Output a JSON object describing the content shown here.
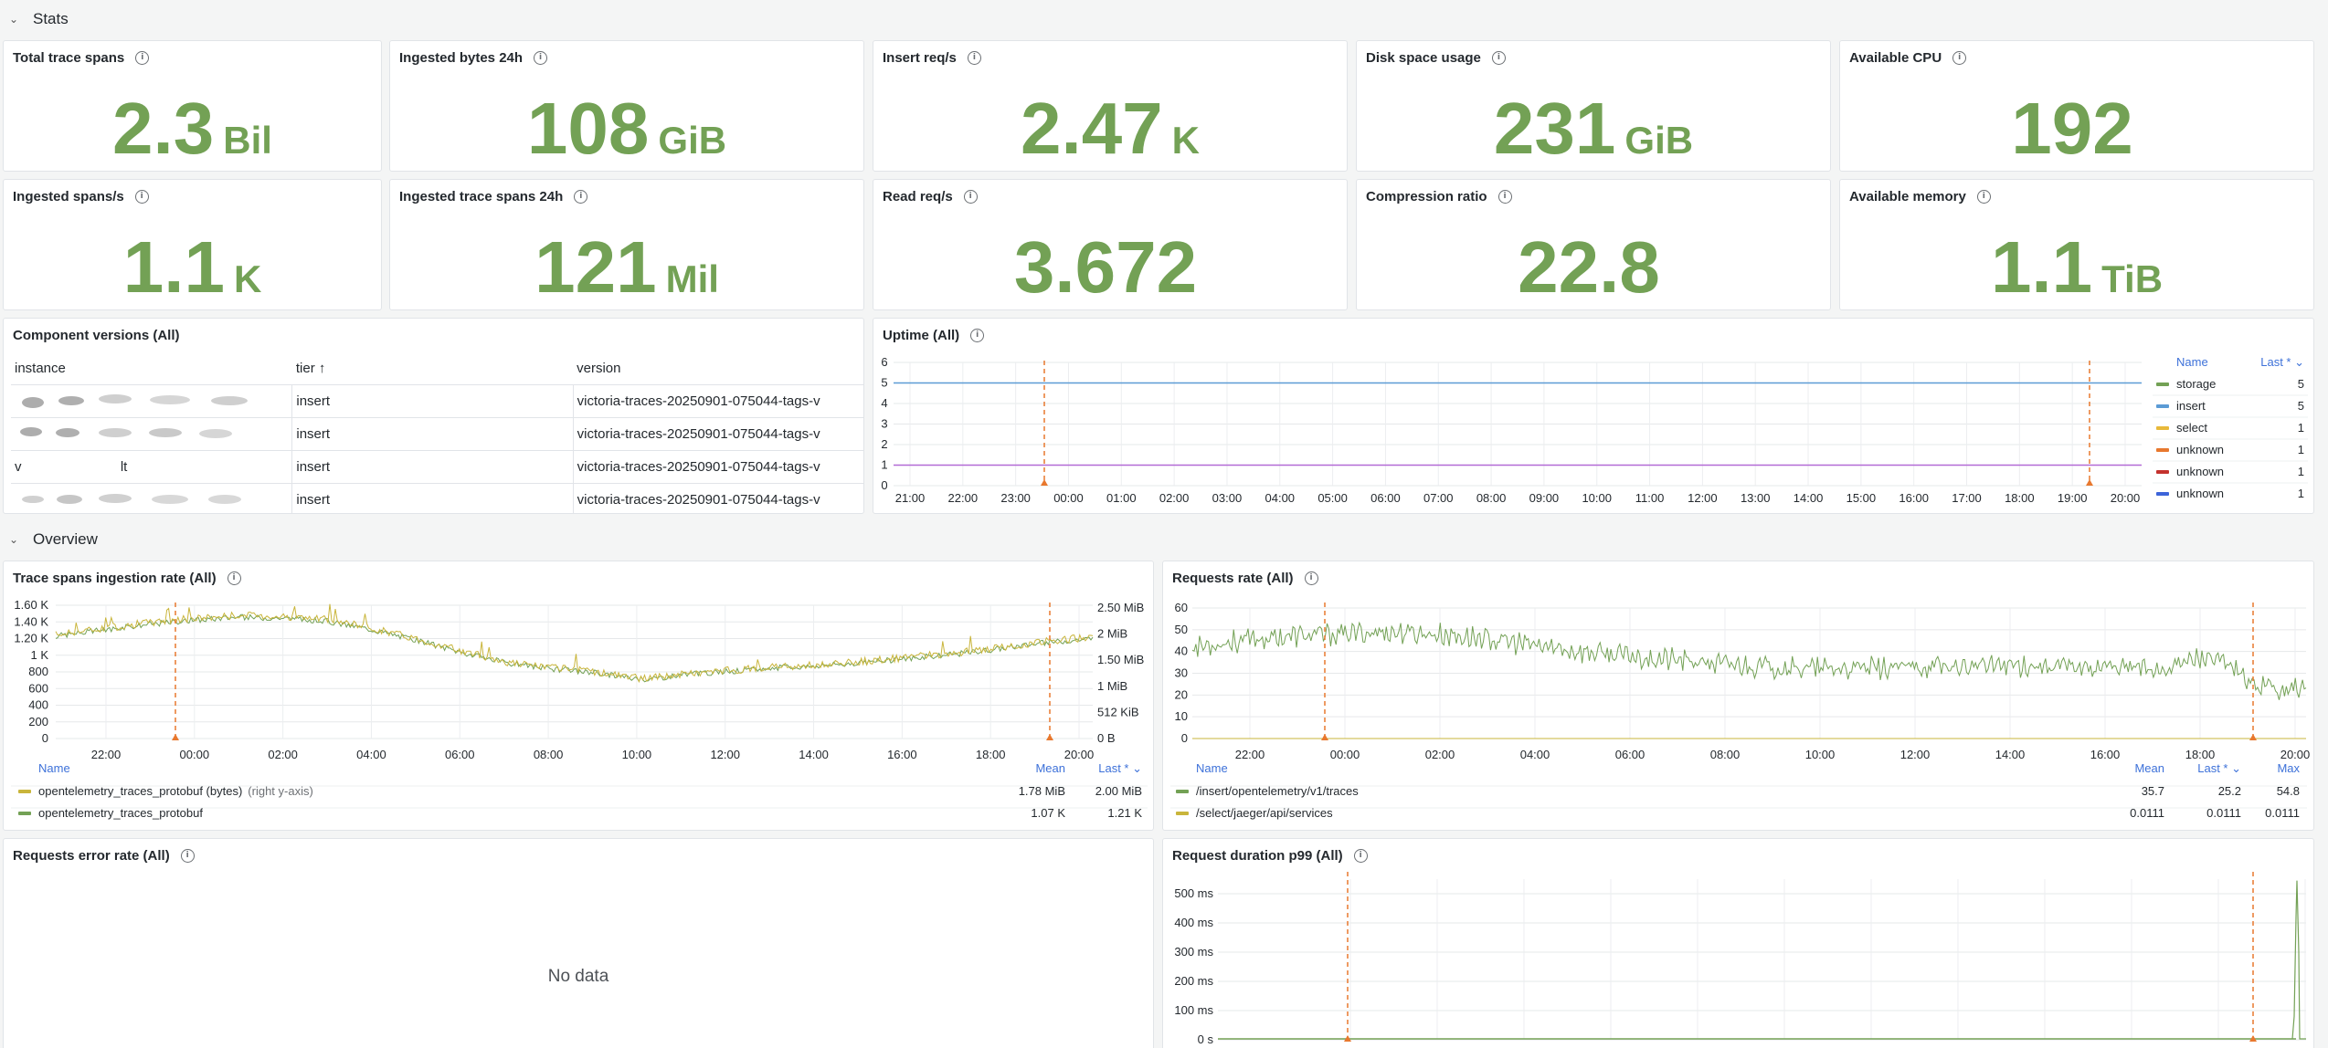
{
  "rows": {
    "stats": "Stats",
    "overview": "Overview"
  },
  "stats": [
    {
      "title": "Total trace spans",
      "value": "2.3",
      "unit": "Bil"
    },
    {
      "title": "Ingested bytes 24h",
      "value": "108",
      "unit": "GiB"
    },
    {
      "title": "Insert req/s",
      "value": "2.47",
      "unit": "K"
    },
    {
      "title": "Disk space usage",
      "value": "231",
      "unit": "GiB"
    },
    {
      "title": "Available CPU",
      "value": "192",
      "unit": ""
    },
    {
      "title": "Ingested spans/s",
      "value": "1.1",
      "unit": "K"
    },
    {
      "title": "Ingested trace spans 24h",
      "value": "121",
      "unit": "Mil"
    },
    {
      "title": "Read req/s",
      "value": "3.672",
      "unit": ""
    },
    {
      "title": "Compression ratio",
      "value": "22.8",
      "unit": ""
    },
    {
      "title": "Available memory",
      "value": "1.1",
      "unit": "TiB"
    }
  ],
  "versions": {
    "title": "Component versions (All)",
    "headers": {
      "instance": "instance",
      "tier": "tier ↑",
      "version": "version"
    },
    "rows": [
      {
        "instance": "",
        "tier": "insert",
        "version": "victoria-traces-20250901-075044-tags-v"
      },
      {
        "instance": "",
        "tier": "insert",
        "version": "victoria-traces-20250901-075044-tags-v"
      },
      {
        "instance": "v                          lt",
        "tier": "insert",
        "version": "victoria-traces-20250901-075044-tags-v"
      },
      {
        "instance": "",
        "tier": "insert",
        "version": "victoria-traces-20250901-075044-tags-v"
      }
    ]
  },
  "uptime": {
    "title": "Uptime (All)",
    "legend_name": "Name",
    "legend_last": "Last * ⌄",
    "colors": {
      "storage": "#73a155",
      "insert": "#5b9bd5",
      "select": "#e8b93a",
      "unknown1": "#e8782e",
      "unknown2": "#c4322e",
      "unknown3": "#3d64d9",
      "purple": "#b36bd6"
    },
    "chart_data": {
      "type": "line",
      "y_ticks": [
        "6",
        "5",
        "4",
        "3",
        "2",
        "1",
        "0"
      ],
      "ylim": [
        0,
        6
      ],
      "x_ticks": [
        "21:00",
        "22:00",
        "23:00",
        "00:00",
        "01:00",
        "02:00",
        "03:00",
        "04:00",
        "05:00",
        "06:00",
        "07:00",
        "08:00",
        "09:00",
        "10:00",
        "11:00",
        "12:00",
        "13:00",
        "14:00",
        "15:00",
        "16:00",
        "17:00",
        "18:00",
        "19:00",
        "20:00"
      ],
      "series": [
        {
          "name": "storage",
          "last": "5"
        },
        {
          "name": "insert",
          "last": "5"
        },
        {
          "name": "select",
          "last": "1"
        },
        {
          "name": "unknown",
          "last": "1"
        },
        {
          "name": "unknown",
          "last": "1"
        },
        {
          "name": "unknown",
          "last": "1"
        }
      ],
      "lines": [
        5,
        1
      ]
    }
  },
  "ingestion": {
    "title": "Trace spans ingestion rate (All)",
    "legend_name": "Name",
    "legend_mean": "Mean",
    "legend_last": "Last * ⌄",
    "chart_data": {
      "type": "line",
      "y_left_ticks": [
        "1.60 K",
        "1.40 K",
        "1.20 K",
        "1 K",
        "800",
        "600",
        "400",
        "200",
        "0"
      ],
      "y_right_ticks": [
        "2.50 MiB",
        "2 MiB",
        "1.50 MiB",
        "1 MiB",
        "512 KiB",
        "0 B"
      ],
      "ylim": [
        0,
        1600
      ],
      "x_ticks": [
        "22:00",
        "00:00",
        "02:00",
        "04:00",
        "06:00",
        "08:00",
        "10:00",
        "12:00",
        "14:00",
        "16:00",
        "18:00",
        "20:00"
      ],
      "series": [
        {
          "name": "opentelemetry_traces_protobuf (bytes)",
          "note": "(right y-axis)",
          "mean": "1.78 MiB",
          "last": "2.00 MiB"
        },
        {
          "name": "opentelemetry_traces_protobuf",
          "note": "",
          "mean": "1.07 K",
          "last": "1.21 K"
        }
      ],
      "profile_y": [
        1250,
        1320,
        1390,
        1440,
        1480,
        1470,
        1430,
        1330,
        1200,
        1050,
        920,
        850,
        800,
        720,
        780,
        820,
        860,
        890,
        930,
        980,
        1030,
        1100,
        1170,
        1220
      ]
    }
  },
  "requests": {
    "title": "Requests rate (All)",
    "legend_name": "Name",
    "legend_mean": "Mean",
    "legend_last": "Last * ⌄",
    "legend_max": "Max",
    "chart_data": {
      "type": "line",
      "y_ticks": [
        "60",
        "50",
        "40",
        "30",
        "20",
        "10",
        "0"
      ],
      "ylim": [
        0,
        60
      ],
      "x_ticks": [
        "22:00",
        "00:00",
        "02:00",
        "04:00",
        "06:00",
        "08:00",
        "10:00",
        "12:00",
        "14:00",
        "16:00",
        "18:00",
        "20:00"
      ],
      "series": [
        {
          "name": "/insert/opentelemetry/v1/traces",
          "mean": "35.7",
          "last": "25.2",
          "max": "54.8"
        },
        {
          "name": "/select/jaeger/api/services",
          "mean": "0.0111",
          "last": "0.0111",
          "max": "0.0111"
        }
      ],
      "profile_y": [
        42,
        45,
        47,
        48,
        49,
        48,
        46,
        43,
        40,
        38,
        36,
        34,
        33,
        32,
        32,
        33,
        33,
        34,
        33,
        33,
        32,
        38,
        24,
        23
      ]
    }
  },
  "errors": {
    "title": "Requests error rate (All)",
    "nodata": "No data"
  },
  "duration": {
    "title": "Request duration p99 (All)",
    "chart_data": {
      "type": "line",
      "y_ticks": [
        "500 ms",
        "400 ms",
        "300 ms",
        "200 ms",
        "100 ms",
        "0 s"
      ],
      "ylim": [
        0,
        550
      ]
    }
  },
  "colors": {
    "stat_green": "#73a155",
    "annotation": "#e8782e",
    "series_green": "#73a155",
    "series_yellow": "#c9b53b"
  }
}
